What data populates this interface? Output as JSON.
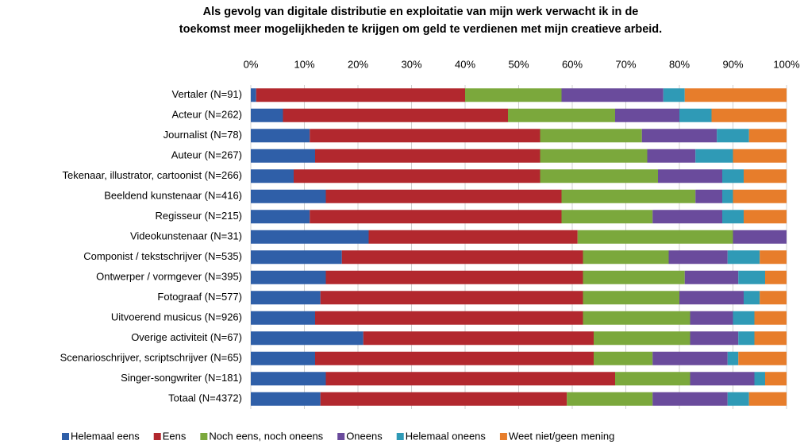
{
  "chart_data": {
    "type": "stacked_bar_horizontal",
    "title": [
      "Als gevolg van digitale distributie en exploitatie van mijn werk verwacht ik in de",
      "toekomst meer mogelijkheden te krijgen om geld te verdienen met mijn creatieve arbeid."
    ],
    "categories": [
      "Vertaler (N=91)",
      "Acteur (N=262)",
      "Journalist (N=78)",
      "Auteur (N=267)",
      "Tekenaar, illustrator, cartoonist (N=266)",
      "Beeldend kunstenaar (N=416)",
      "Regisseur (N=215)",
      "Videokunstenaar (N=31)",
      "Componist / tekstschrijver (N=535)",
      "Ontwerper / vormgever (N=395)",
      "Fotograaf (N=577)",
      "Uitvoerend musicus (N=926)",
      "Overige activiteit (N=67)",
      "Scenarioschrijver, scriptschrijver (N=65)",
      "Singer-songwriter (N=181)",
      "Totaal (N=4372)"
    ],
    "series": [
      {
        "name": "Helemaal eens",
        "color": "#2f5fa8",
        "values": [
          1,
          6,
          11,
          12,
          8,
          14,
          11,
          22,
          17,
          14,
          13,
          12,
          21,
          12,
          14,
          13
        ]
      },
      {
        "name": "Eens",
        "color": "#b2282e",
        "values": [
          39,
          42,
          43,
          42,
          46,
          44,
          47,
          39,
          45,
          48,
          49,
          50,
          43,
          52,
          54,
          46
        ]
      },
      {
        "name": "Noch eens, noch oneens",
        "color": "#7ba83c",
        "values": [
          18,
          20,
          19,
          20,
          22,
          25,
          17,
          29,
          16,
          19,
          18,
          20,
          18,
          11,
          14,
          16
        ]
      },
      {
        "name": "Oneens",
        "color": "#6a4b9c",
        "values": [
          19,
          12,
          14,
          9,
          12,
          5,
          13,
          10,
          11,
          10,
          12,
          8,
          9,
          14,
          12,
          14
        ]
      },
      {
        "name": "Helemaal oneens",
        "color": "#2f9ab6",
        "values": [
          4,
          6,
          6,
          7,
          4,
          2,
          4,
          0,
          6,
          5,
          3,
          4,
          3,
          2,
          2,
          4
        ]
      },
      {
        "name": "Weet niet/geen mening",
        "color": "#e77d2b",
        "values": [
          19,
          14,
          7,
          10,
          8,
          10,
          8,
          0,
          5,
          4,
          5,
          6,
          6,
          9,
          4,
          7
        ]
      }
    ],
    "xlim": [
      0,
      100
    ],
    "xticks": [
      {
        "value": 0,
        "label": "0%"
      },
      {
        "value": 10,
        "label": "10%"
      },
      {
        "value": 20,
        "label": "20%"
      },
      {
        "value": 30,
        "label": "30%"
      },
      {
        "value": 40,
        "label": "40%"
      },
      {
        "value": 50,
        "label": "50%"
      },
      {
        "value": 60,
        "label": "60%"
      },
      {
        "value": 70,
        "label": "70%"
      },
      {
        "value": 80,
        "label": "80%"
      },
      {
        "value": 90,
        "label": "90%"
      },
      {
        "value": 100,
        "label": "100%"
      }
    ],
    "grid": true,
    "legend": "bottom"
  }
}
